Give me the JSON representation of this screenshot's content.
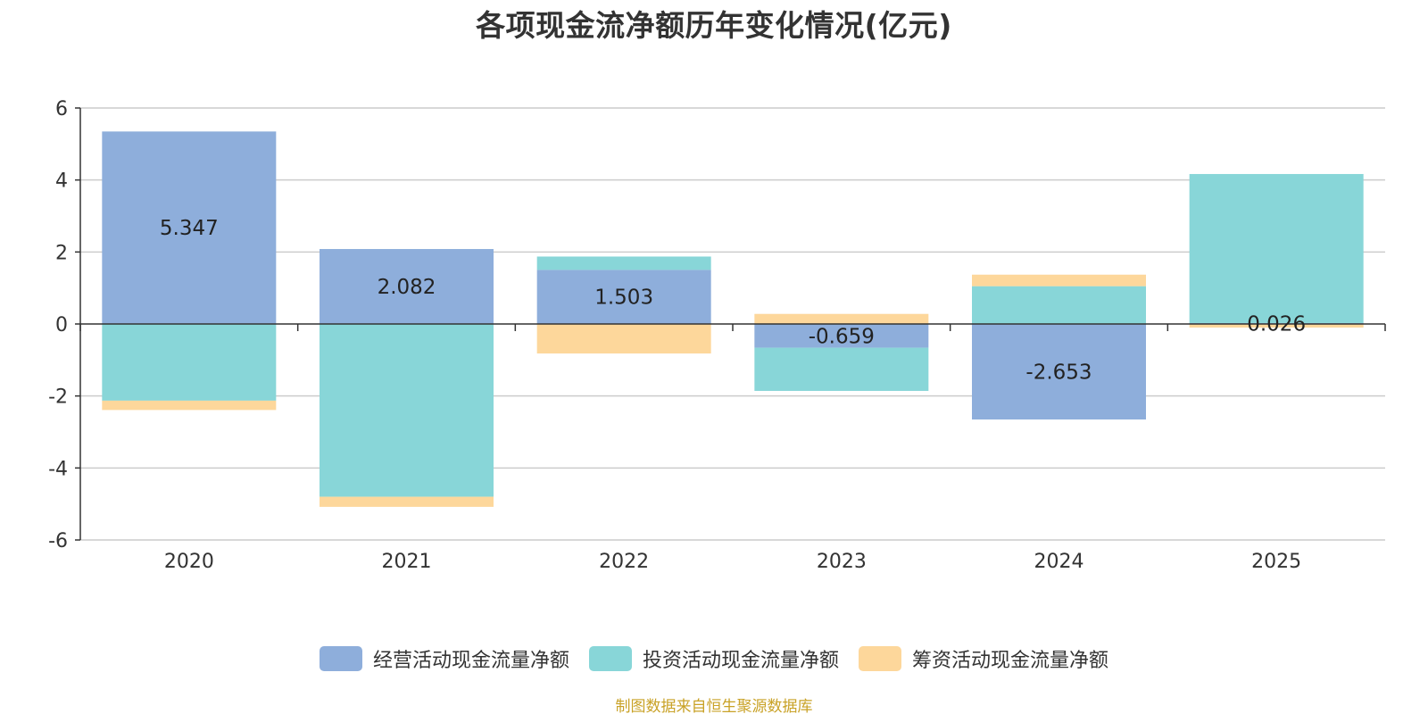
{
  "title": "各项现金流净额历年变化情况(亿元)",
  "source_text": "制图数据来自恒生聚源数据库",
  "chart_data": {
    "type": "bar",
    "stacked": true,
    "title": "各项现金流净额历年变化情况(亿元)",
    "categories": [
      "2020",
      "2021",
      "2022",
      "2023",
      "2024",
      "2025"
    ],
    "series": [
      {
        "name": "经营活动现金流量净额",
        "color": "#8eaedb",
        "values": [
          5.347,
          2.082,
          1.503,
          -0.659,
          -2.653,
          0.026
        ],
        "labels": [
          "5.347",
          "2.082",
          "1.503",
          "-0.659",
          "-2.653",
          "0.026"
        ]
      },
      {
        "name": "投资活动现金流量净额",
        "color": "#88d6d8",
        "values": [
          -2.13,
          -4.8,
          0.37,
          -1.2,
          1.05,
          4.14
        ]
      },
      {
        "name": "筹资活动现金流量净额",
        "color": "#fdd79b",
        "values": [
          -0.26,
          -0.28,
          -0.82,
          0.28,
          0.32,
          -0.1
        ]
      }
    ],
    "ylim": [
      -6,
      6
    ],
    "yticks": [
      -6,
      -4,
      -2,
      0,
      2,
      4,
      6
    ],
    "ytick_labels": [
      "-6",
      "-4",
      "-2",
      "0",
      "2",
      "4",
      "6"
    ],
    "grid": true,
    "legend": "bottom-center"
  }
}
